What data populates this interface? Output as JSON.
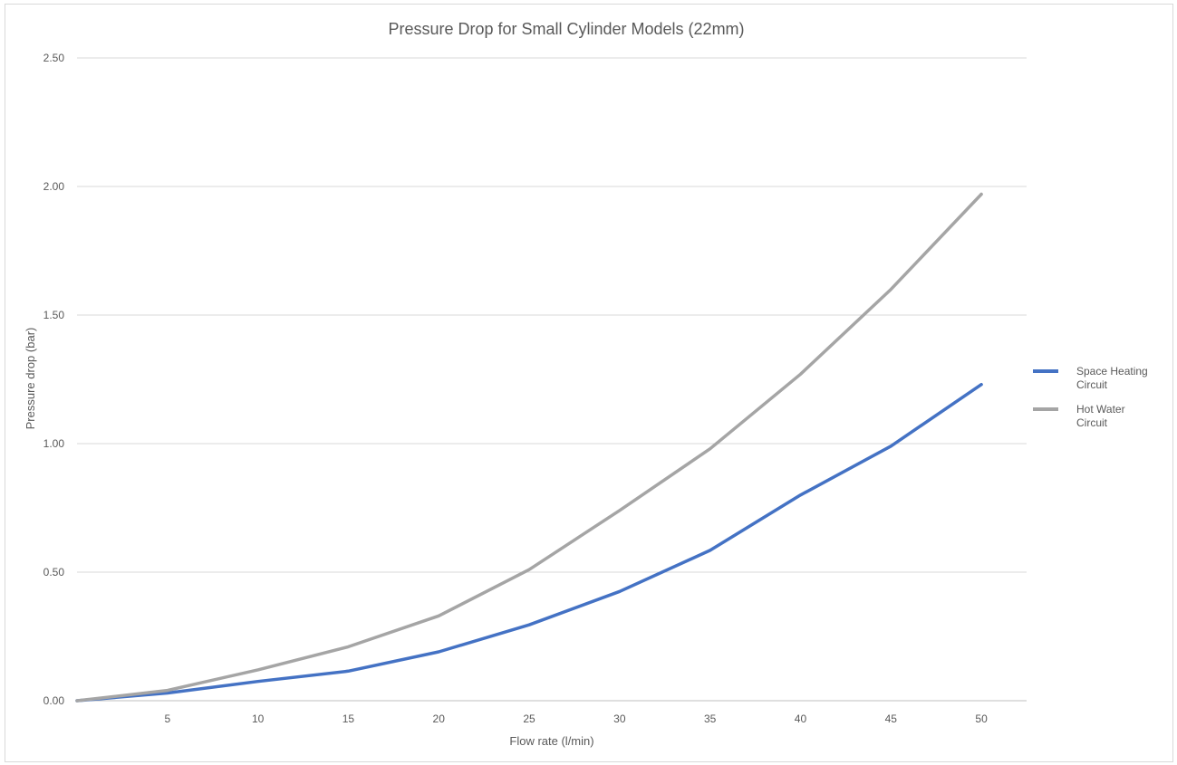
{
  "chart_data": {
    "type": "line",
    "title": "Pressure Drop for Small Cylinder Models (22mm)",
    "xlabel": "Flow rate (l/min)",
    "ylabel": "Pressure drop (bar)",
    "categories": [
      "",
      "5",
      "10",
      "15",
      "20",
      "25",
      "30",
      "35",
      "40",
      "45",
      "50"
    ],
    "ylim": [
      0,
      2.5
    ],
    "yticks": [
      "0.00",
      "0.50",
      "1.00",
      "1.50",
      "2.00",
      "2.50"
    ],
    "grid": true,
    "legend_position": "right",
    "series": [
      {
        "name": "Space Heating Circuit",
        "name_lines": [
          "Space Heating",
          "Circuit"
        ],
        "color": "#4472c4",
        "values": [
          0.0,
          0.03,
          0.075,
          0.115,
          0.19,
          0.295,
          0.425,
          0.585,
          0.8,
          0.99,
          1.23
        ]
      },
      {
        "name": "Hot Water Circuit",
        "name_lines": [
          "Hot Water",
          "Circuit"
        ],
        "color": "#a5a5a5",
        "values": [
          0.0,
          0.04,
          0.12,
          0.21,
          0.33,
          0.51,
          0.74,
          0.98,
          1.27,
          1.6,
          1.97
        ]
      }
    ]
  }
}
